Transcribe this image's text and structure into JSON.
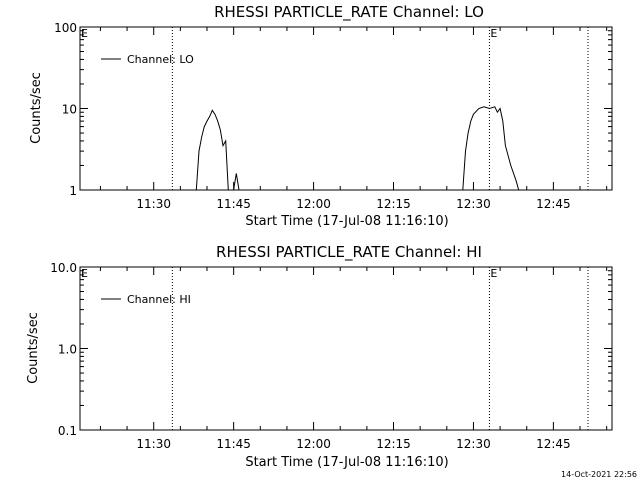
{
  "footer": {
    "timestamp": "14-Oct-2021 22:56"
  },
  "chart_data": [
    {
      "type": "line",
      "title": "RHESSI PARTICLE_RATE Channel: LO",
      "xlabel": "Start Time (17-Jul-08 11:16:10)",
      "ylabel": "Counts/sec",
      "yscale": "log",
      "ylim": [
        1,
        100
      ],
      "xlim": [
        "11:16:10",
        "12:56:00"
      ],
      "x_ticks": [
        "11:30",
        "11:45",
        "12:00",
        "12:15",
        "12:30",
        "12:45"
      ],
      "y_ticks": [
        "1",
        "10",
        "100"
      ],
      "legend": {
        "position": "top-left",
        "entries": [
          "Channel: LO"
        ]
      },
      "markers": [
        {
          "label": "E",
          "time": "11:16:10"
        },
        {
          "label": "E",
          "time": "12:33:00"
        }
      ],
      "vertical_lines": [
        "11:33:30",
        "12:33:00",
        "12:51:30"
      ],
      "grid": false,
      "series": [
        {
          "name": "Channel: LO",
          "segments": [
            [
              [
                "11:38:00",
                1
              ],
              [
                "11:38:30",
                3.0
              ],
              [
                "11:39:00",
                4.5
              ],
              [
                "11:39:30",
                6.0
              ],
              [
                "11:40:00",
                7.0
              ],
              [
                "11:40:30",
                8.0
              ],
              [
                "11:41:00",
                9.5
              ],
              [
                "11:41:30",
                8.5
              ],
              [
                "11:42:00",
                7.0
              ],
              [
                "11:42:30",
                5.5
              ],
              [
                "11:43:00",
                3.5
              ],
              [
                "11:43:30",
                4.0
              ],
              [
                "11:44:00",
                1
              ]
            ],
            [
              [
                "11:45:00",
                1
              ],
              [
                "11:45:30",
                1.6
              ],
              [
                "11:46:00",
                1
              ]
            ],
            [
              [
                "12:28:00",
                1
              ],
              [
                "12:28:30",
                3.0
              ],
              [
                "12:29:00",
                5.0
              ],
              [
                "12:29:30",
                7.0
              ],
              [
                "12:30:00",
                8.5
              ],
              [
                "12:31:00",
                10
              ],
              [
                "12:32:00",
                10.5
              ],
              [
                "12:33:00",
                10
              ],
              [
                "12:34:00",
                10.5
              ],
              [
                "12:34:30",
                9.0
              ],
              [
                "12:35:00",
                10.0
              ],
              [
                "12:35:30",
                7.0
              ],
              [
                "12:36:00",
                3.5
              ],
              [
                "12:37:00",
                2.0
              ],
              [
                "12:38:00",
                1.3
              ],
              [
                "12:38:30",
                1
              ]
            ]
          ]
        }
      ]
    },
    {
      "type": "line",
      "title": "RHESSI PARTICLE_RATE Channel: HI",
      "xlabel": "Start Time (17-Jul-08 11:16:10)",
      "ylabel": "Counts/sec",
      "yscale": "log",
      "ylim": [
        0.1,
        10
      ],
      "xlim": [
        "11:16:10",
        "12:56:00"
      ],
      "x_ticks": [
        "11:30",
        "11:45",
        "12:00",
        "12:15",
        "12:30",
        "12:45"
      ],
      "y_ticks": [
        "0.1",
        "1.0",
        "10.0"
      ],
      "legend": {
        "position": "top-left",
        "entries": [
          "Channel: HI"
        ]
      },
      "markers": [
        {
          "label": "E",
          "time": "11:16:10"
        },
        {
          "label": "E",
          "time": "12:33:00"
        }
      ],
      "vertical_lines": [
        "11:33:30",
        "12:33:00",
        "12:51:30"
      ],
      "grid": false,
      "series": [
        {
          "name": "Channel: HI",
          "segments": []
        }
      ]
    }
  ]
}
